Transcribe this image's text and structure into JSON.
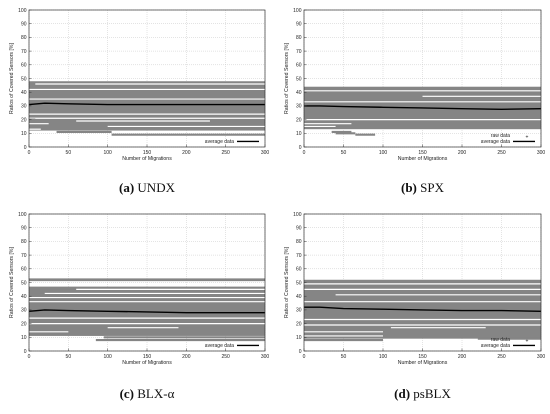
{
  "chart_data": [
    {
      "type": "scatter",
      "caption": {
        "label": "(a)",
        "name": "UNDX"
      },
      "xlabel": "Number of Migrations",
      "ylabel": "Ratios of Covered Sensors [%]",
      "xlim": [
        0,
        300
      ],
      "ylim": [
        0,
        100
      ],
      "xticks": [
        0,
        50,
        100,
        150,
        200,
        250,
        300
      ],
      "yticks": [
        0,
        10,
        20,
        30,
        40,
        50,
        60,
        70,
        80,
        90,
        100
      ],
      "grid": true,
      "legend": {
        "position": "bottom-right",
        "entries": [
          "average data"
        ]
      },
      "raw_bands": [
        [
          12,
          48
        ]
      ],
      "raw_gaps": [
        {
          "y": 46,
          "x": [
            8,
            300
          ]
        },
        {
          "y": 42,
          "x": [
            0,
            300
          ]
        },
        {
          "y": 35,
          "x": [
            0,
            300
          ]
        },
        {
          "y": 24,
          "x": [
            0,
            300
          ]
        },
        {
          "y": 21,
          "x": [
            0,
            300
          ]
        },
        {
          "y": 19,
          "x": [
            60,
            230
          ]
        },
        {
          "y": 17,
          "x": [
            0,
            25
          ]
        },
        {
          "y": 15,
          "x": [
            100,
            300
          ]
        },
        {
          "y": 13,
          "x": [
            0,
            15
          ]
        }
      ],
      "raw_segments": [
        {
          "y": 9,
          "x": [
            105,
            300
          ]
        },
        {
          "y": 11,
          "x": [
            35,
            105
          ]
        },
        {
          "y": 20,
          "x": [
            0,
            8
          ]
        }
      ],
      "average": {
        "x": [
          0,
          20,
          50,
          100,
          150,
          200,
          250,
          300
        ],
        "y": [
          31,
          32,
          31.5,
          31,
          31,
          31,
          31,
          31
        ]
      }
    },
    {
      "type": "scatter",
      "caption": {
        "label": "(b)",
        "name": "SPX"
      },
      "xlabel": "Number of Migrations",
      "ylabel": "Ratios of Covered Sensors [%]",
      "xlim": [
        0,
        300
      ],
      "ylim": [
        0,
        100
      ],
      "xticks": [
        0,
        50,
        100,
        150,
        200,
        250,
        300
      ],
      "yticks": [
        0,
        10,
        20,
        30,
        40,
        50,
        60,
        70,
        80,
        90,
        100
      ],
      "grid": true,
      "legend": {
        "position": "bottom-right",
        "entries": [
          "raw data",
          "average data"
        ]
      },
      "raw_bands": [
        [
          13,
          44
        ]
      ],
      "raw_gaps": [
        {
          "y": 41,
          "x": [
            0,
            300
          ]
        },
        {
          "y": 37,
          "x": [
            150,
            300
          ]
        },
        {
          "y": 33,
          "x": [
            0,
            300
          ]
        },
        {
          "y": 20,
          "x": [
            0,
            300
          ]
        },
        {
          "y": 17,
          "x": [
            0,
            60
          ]
        },
        {
          "y": 15,
          "x": [
            0,
            40
          ]
        }
      ],
      "raw_segments": [
        {
          "y": 11,
          "x": [
            35,
            60
          ]
        },
        {
          "y": 10,
          "x": [
            40,
            65
          ]
        },
        {
          "y": 9,
          "x": [
            65,
            90
          ]
        }
      ],
      "average": {
        "x": [
          0,
          20,
          50,
          100,
          150,
          200,
          250,
          300
        ],
        "y": [
          30,
          30,
          29.5,
          29,
          28.5,
          28,
          27.5,
          28
        ]
      }
    },
    {
      "type": "scatter",
      "caption": {
        "label": "(c)",
        "name": "BLX-α"
      },
      "xlabel": "Number of Migrations",
      "ylabel": "Ratios of Covered Sensors [%]",
      "xlim": [
        0,
        300
      ],
      "ylim": [
        0,
        100
      ],
      "xticks": [
        0,
        50,
        100,
        150,
        200,
        250,
        300
      ],
      "yticks": [
        0,
        10,
        20,
        30,
        40,
        50,
        60,
        70,
        80,
        90,
        100
      ],
      "grid": true,
      "legend": {
        "position": "bottom-right",
        "entries": [
          "average data"
        ]
      },
      "raw_bands": [
        [
          11,
          47
        ],
        [
          51,
          53
        ]
      ],
      "raw_gaps": [
        {
          "y": 45,
          "x": [
            60,
            300
          ]
        },
        {
          "y": 42,
          "x": [
            20,
            300
          ]
        },
        {
          "y": 39,
          "x": [
            0,
            300
          ]
        },
        {
          "y": 36,
          "x": [
            0,
            300
          ]
        },
        {
          "y": 24,
          "x": [
            0,
            300
          ]
        },
        {
          "y": 20,
          "x": [
            0,
            300
          ]
        },
        {
          "y": 17,
          "x": [
            100,
            190
          ]
        },
        {
          "y": 14,
          "x": [
            0,
            50
          ]
        }
      ],
      "raw_segments": [
        {
          "y": 8,
          "x": [
            85,
            300
          ]
        },
        {
          "y": 10,
          "x": [
            95,
            300
          ]
        }
      ],
      "average": {
        "x": [
          0,
          20,
          50,
          100,
          150,
          200,
          250,
          300
        ],
        "y": [
          29,
          30,
          29.5,
          29,
          28.5,
          28,
          28,
          28
        ]
      }
    },
    {
      "type": "scatter",
      "caption": {
        "label": "(d)",
        "name": "psBLX"
      },
      "xlabel": "Number of Migrations",
      "ylabel": "Ratios of Covered Sensors [%]",
      "xlim": [
        0,
        300
      ],
      "ylim": [
        0,
        100
      ],
      "xticks": [
        0,
        50,
        100,
        150,
        200,
        250,
        300
      ],
      "yticks": [
        0,
        10,
        20,
        30,
        40,
        50,
        60,
        70,
        80,
        90,
        100
      ],
      "grid": true,
      "legend": {
        "position": "bottom-right",
        "entries": [
          "raw data",
          "average data"
        ]
      },
      "raw_bands": [
        [
          9,
          52
        ]
      ],
      "raw_gaps": [
        {
          "y": 49,
          "x": [
            0,
            300
          ]
        },
        {
          "y": 45,
          "x": [
            0,
            300
          ]
        },
        {
          "y": 41,
          "x": [
            40,
            300
          ]
        },
        {
          "y": 36,
          "x": [
            0,
            300
          ]
        },
        {
          "y": 23,
          "x": [
            0,
            300
          ]
        },
        {
          "y": 19,
          "x": [
            0,
            300
          ]
        },
        {
          "y": 17,
          "x": [
            110,
            230
          ]
        },
        {
          "y": 14,
          "x": [
            0,
            100
          ]
        },
        {
          "y": 11,
          "x": [
            0,
            100
          ]
        }
      ],
      "raw_segments": [
        {
          "y": 8,
          "x": [
            0,
            100
          ]
        },
        {
          "y": 9,
          "x": [
            220,
            300
          ]
        }
      ],
      "average": {
        "x": [
          0,
          20,
          50,
          100,
          150,
          200,
          250,
          300
        ],
        "y": [
          32,
          32,
          31,
          30.5,
          30,
          29.5,
          29.5,
          29
        ]
      }
    }
  ],
  "colors": {
    "raw": "#858585",
    "average": "#000000",
    "grid": "#c8c8c8",
    "frame": "#333333"
  }
}
